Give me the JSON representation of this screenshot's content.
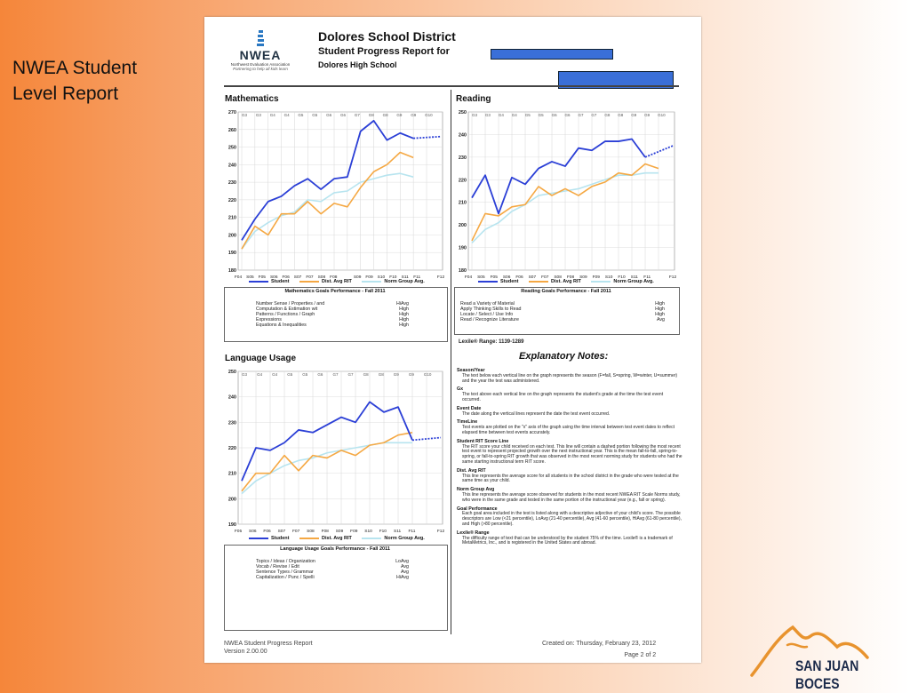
{
  "slide": {
    "title_line1": "NWEA Student",
    "title_line2": "Level Report"
  },
  "colors": {
    "student": "#2b3fd6",
    "district": "#f5a843",
    "norm": "#b7e4ef"
  },
  "logo": {
    "word": "NWEA",
    "sub": "Northwest Evaluation Association",
    "tagline": "Partnering to help all kids learn"
  },
  "report": {
    "district": "Dolores School District",
    "title": "Student Progress Report for",
    "school": "Dolores High School"
  },
  "legend": {
    "student": "Student",
    "district": "Dist. Avg RIT",
    "norm": "Norm Group Avg."
  },
  "charts": [
    {
      "id": "math",
      "title": "Mathematics",
      "ymin": 180,
      "ymax": 270,
      "yticks": [
        180,
        190,
        200,
        210,
        220,
        230,
        240,
        250,
        260,
        270
      ],
      "grades": [
        "G3",
        "G3",
        "G4",
        "G4",
        "G5",
        "G5",
        "G6",
        "G6",
        "G7",
        "G8",
        "G8",
        "G9",
        "G9",
        "G10"
      ],
      "seasons": [
        "F04",
        "S05",
        "F05",
        "S06",
        "F06",
        "S07",
        "F07",
        "S08",
        "F08",
        "",
        "S09",
        "F09",
        "S10",
        "F10",
        "S11",
        "F11",
        "",
        "F12"
      ],
      "student": [
        197,
        209,
        219,
        222,
        228,
        232,
        226,
        232,
        233,
        259,
        265,
        254,
        258,
        255,
        256
      ],
      "district": [
        192,
        205,
        200,
        212,
        212,
        219,
        212,
        218,
        216,
        227,
        236,
        240,
        247,
        244
      ],
      "norm": [
        192,
        202,
        207,
        211,
        213,
        220,
        219,
        224,
        225,
        230,
        232,
        234,
        235,
        233
      ],
      "goals_title": "Mathematics Goals Performance - Fall 2011",
      "goals": [
        {
          "name": "Number Sense / Properties / and",
          "level": "HiAvg"
        },
        {
          "name": "Computation & Estimation wit",
          "level": "High"
        },
        {
          "name": "Patterns / Functions / Graph",
          "level": "High"
        },
        {
          "name": "Expressions",
          "level": "High"
        },
        {
          "name": "Equations & Inequalities",
          "level": "High"
        }
      ]
    },
    {
      "id": "reading",
      "title": "Reading",
      "ymin": 180,
      "ymax": 250,
      "yticks": [
        180,
        190,
        200,
        210,
        220,
        230,
        240,
        250
      ],
      "grades": [
        "G3",
        "G3",
        "G4",
        "G4",
        "G5",
        "G5",
        "G6",
        "G6",
        "G7",
        "G7",
        "G8",
        "G8",
        "G9",
        "G9",
        "G10"
      ],
      "seasons": [
        "F04",
        "S05",
        "F05",
        "S06",
        "F06",
        "S07",
        "F07",
        "S08",
        "F08",
        "S09",
        "F09",
        "S10",
        "F10",
        "S11",
        "F11",
        "",
        "F12"
      ],
      "student": [
        212,
        222,
        205,
        221,
        218,
        225,
        228,
        226,
        234,
        233,
        237,
        237,
        238,
        230,
        235
      ],
      "district": [
        193,
        205,
        204,
        208,
        209,
        217,
        213,
        216,
        213,
        217,
        219,
        223,
        222,
        227,
        225
      ],
      "norm": [
        192,
        198,
        201,
        206,
        209,
        213,
        214,
        215,
        216,
        218,
        220,
        222,
        222,
        223,
        223
      ],
      "goals_title": "Reading Goals Performance - Fall 2011",
      "goals": [
        {
          "name": "Read a Variety of Material",
          "level": "High"
        },
        {
          "name": "Apply Thinking Skills to Read",
          "level": "High"
        },
        {
          "name": "Locate / Select / Use Info",
          "level": "High"
        },
        {
          "name": "Read / Recognize Literature",
          "level": "Avg"
        }
      ],
      "lexile": "Lexile® Range: 1139-1289"
    },
    {
      "id": "language",
      "title": "Language Usage",
      "ymin": 190,
      "ymax": 250,
      "yticks": [
        190,
        200,
        210,
        220,
        230,
        240,
        250
      ],
      "grades": [
        "G3",
        "G4",
        "G4",
        "G5",
        "G5",
        "G6",
        "G7",
        "G7",
        "G8",
        "G8",
        "G9",
        "G9",
        "G10"
      ],
      "seasons": [
        "F05",
        "S06",
        "F06",
        "S07",
        "F07",
        "S08",
        "F08",
        "S09",
        "F09",
        "S10",
        "F10",
        "S11",
        "F11",
        "",
        "F12"
      ],
      "student": [
        207,
        220,
        219,
        222,
        227,
        226,
        229,
        232,
        230,
        238,
        234,
        236,
        223,
        224
      ],
      "district": [
        203,
        210,
        210,
        217,
        211,
        217,
        216,
        219,
        217,
        221,
        222,
        225,
        226
      ],
      "norm": [
        202,
        207,
        210,
        213,
        215,
        216,
        218,
        219,
        220,
        221,
        222,
        222,
        222
      ],
      "goals_title": "Language Usage Goals Performance - Fall 2011",
      "goals": [
        {
          "name": "Topics / Ideas / Organization",
          "level": "LoAvg"
        },
        {
          "name": "Vocab / Revise / Edit",
          "level": "Avg"
        },
        {
          "name": "Sentence Types / Grammar",
          "level": "Avg"
        },
        {
          "name": "Capitalization / Punc / Spelli",
          "level": "HiAvg"
        }
      ]
    }
  ],
  "explanatory": {
    "title": "Explanatory Notes:",
    "notes": [
      {
        "head": "Season/Year",
        "text": "The text below each vertical line on the graph represents the season (F=fall, S=spring, W=winter, U=summer) and the year the test was administered."
      },
      {
        "head": "Gx",
        "text": "The text above each vertical line on the graph represents the student's grade at the time the test event occurred."
      },
      {
        "head": "Event Date",
        "text": "The date along the vertical lines represent the date the test event occurred."
      },
      {
        "head": "TimeLine",
        "text": "Test events are plotted on the \"x\" axis of the graph using the time interval between test event dates to reflect elapsed time between test events accurately."
      },
      {
        "head": "Student RIT Score Line",
        "text": "The RIT score your child received on each test. This line will contain a dashed portion following the most recent test event to represent projected growth over the next instructional year. This is the mean fall-to-fall, spring-to-spring, or fall-to-spring RIT growth that was observed in the most recent norming study for students who had the same starting instructional term RIT score."
      },
      {
        "head": "Dist. Avg RIT",
        "text": "This line represents the average score for all students in the school district in the grade who were tested at the same time as your child."
      },
      {
        "head": "Norm Group Avg",
        "text": "This line represents the average score observed for students in the most recent NWEA RIT Scale Norms study, who were in the same grade and tested in the same portion of the instructional year (e.g., fall or spring)."
      },
      {
        "head": "Goal Performance",
        "text": "Each goal area included in the test is listed along with a descriptive adjective of your child's score. The possible descriptors are Low (<21 percentile), LoAvg (21-40 percentile), Avg (41-60 percentile), HiAvg (61-80 percentile), and High (>80 percentile)."
      },
      {
        "head": "Lexile® Range",
        "text": "The difficulty range of text that can be understood by the student 75% of the time. Lexile® is a trademark of MetaMetrics, Inc., and is registered in the United States and abroad."
      }
    ]
  },
  "footer": {
    "left1": "NWEA Student Progress Report",
    "left2": "Version 2.00.00",
    "created": "Created on: Thursday, February 23, 2012",
    "page": "Page 2 of 2"
  },
  "brand": {
    "name": "SAN JUAN BOCES"
  }
}
